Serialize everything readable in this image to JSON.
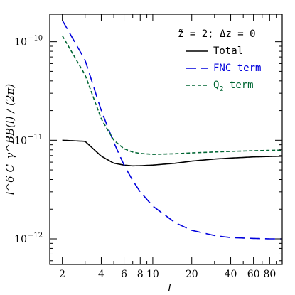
{
  "chart_data": {
    "type": "line",
    "title": "",
    "xlabel": "l",
    "ylabel": "l^6 C_γ^BB(l) / (2π)",
    "xscale": "log",
    "yscale": "log",
    "xlim": [
      1.6,
      100
    ],
    "ylim": [
      5.5e-13,
      1.9e-10
    ],
    "xticks": [
      2,
      4,
      6,
      8,
      10,
      20,
      40,
      60,
      80
    ],
    "xtick_labels": [
      "2",
      "4",
      "6",
      "8",
      "10",
      "20",
      "40",
      "60",
      "80"
    ],
    "ytick_labels": [
      {
        "value": 1e-12,
        "mantissa": "10",
        "exponent": "−12"
      },
      {
        "value": 1e-11,
        "mantissa": "10",
        "exponent": "−11"
      },
      {
        "value": 1e-10,
        "mantissa": "10",
        "exponent": "−10"
      }
    ],
    "legend": {
      "placement": "top-right",
      "header": "z̃ = 2;  Δz = 0",
      "header_parts": {
        "z": "z",
        "eq1": " = 2;  ",
        "dz": "Δz = 0"
      }
    },
    "grid": false,
    "series": [
      {
        "name": "Total",
        "label_parts": {
          "main": "Total",
          "sub": ""
        },
        "color": "#000000",
        "dash": "solid",
        "x": [
          2,
          3,
          4,
          5,
          6,
          7,
          8,
          10,
          15,
          20,
          30,
          40,
          60,
          80,
          100
        ],
        "y": [
          1e-11,
          9.75e-12,
          6.9e-12,
          5.85e-12,
          5.6e-12,
          5.5e-12,
          5.52e-12,
          5.6e-12,
          5.85e-12,
          6.15e-12,
          6.45e-12,
          6.6e-12,
          6.78e-12,
          6.85e-12,
          6.9e-12
        ]
      },
      {
        "name": "FNC term",
        "label_parts": {
          "main": "FNC term",
          "sub": ""
        },
        "color": "#0000dd",
        "dash": "long-dash",
        "x": [
          2,
          3,
          4,
          5,
          6,
          7,
          8,
          10,
          15,
          20,
          30,
          40,
          60,
          80,
          100
        ],
        "y": [
          1.65e-10,
          6.5e-11,
          2e-11,
          9.5e-12,
          5.6e-12,
          3.9e-12,
          3e-12,
          2.15e-12,
          1.45e-12,
          1.22e-12,
          1.08e-12,
          1.03e-12,
          1.01e-12,
          1e-12,
          1e-12
        ]
      },
      {
        "name": "Q2 term",
        "label_parts": {
          "main": "Q",
          "sub": "2",
          "rest": " term"
        },
        "color": "#006633",
        "dash": "short-dash",
        "x": [
          2,
          3,
          4,
          5,
          6,
          7,
          8,
          10,
          15,
          20,
          30,
          40,
          60,
          80,
          100
        ],
        "y": [
          1.15e-10,
          4.6e-11,
          1.65e-11,
          1e-11,
          8.2e-12,
          7.6e-12,
          7.35e-12,
          7.2e-12,
          7.3e-12,
          7.45e-12,
          7.6e-12,
          7.72e-12,
          7.83e-12,
          7.9e-12,
          7.95e-12
        ]
      }
    ]
  }
}
